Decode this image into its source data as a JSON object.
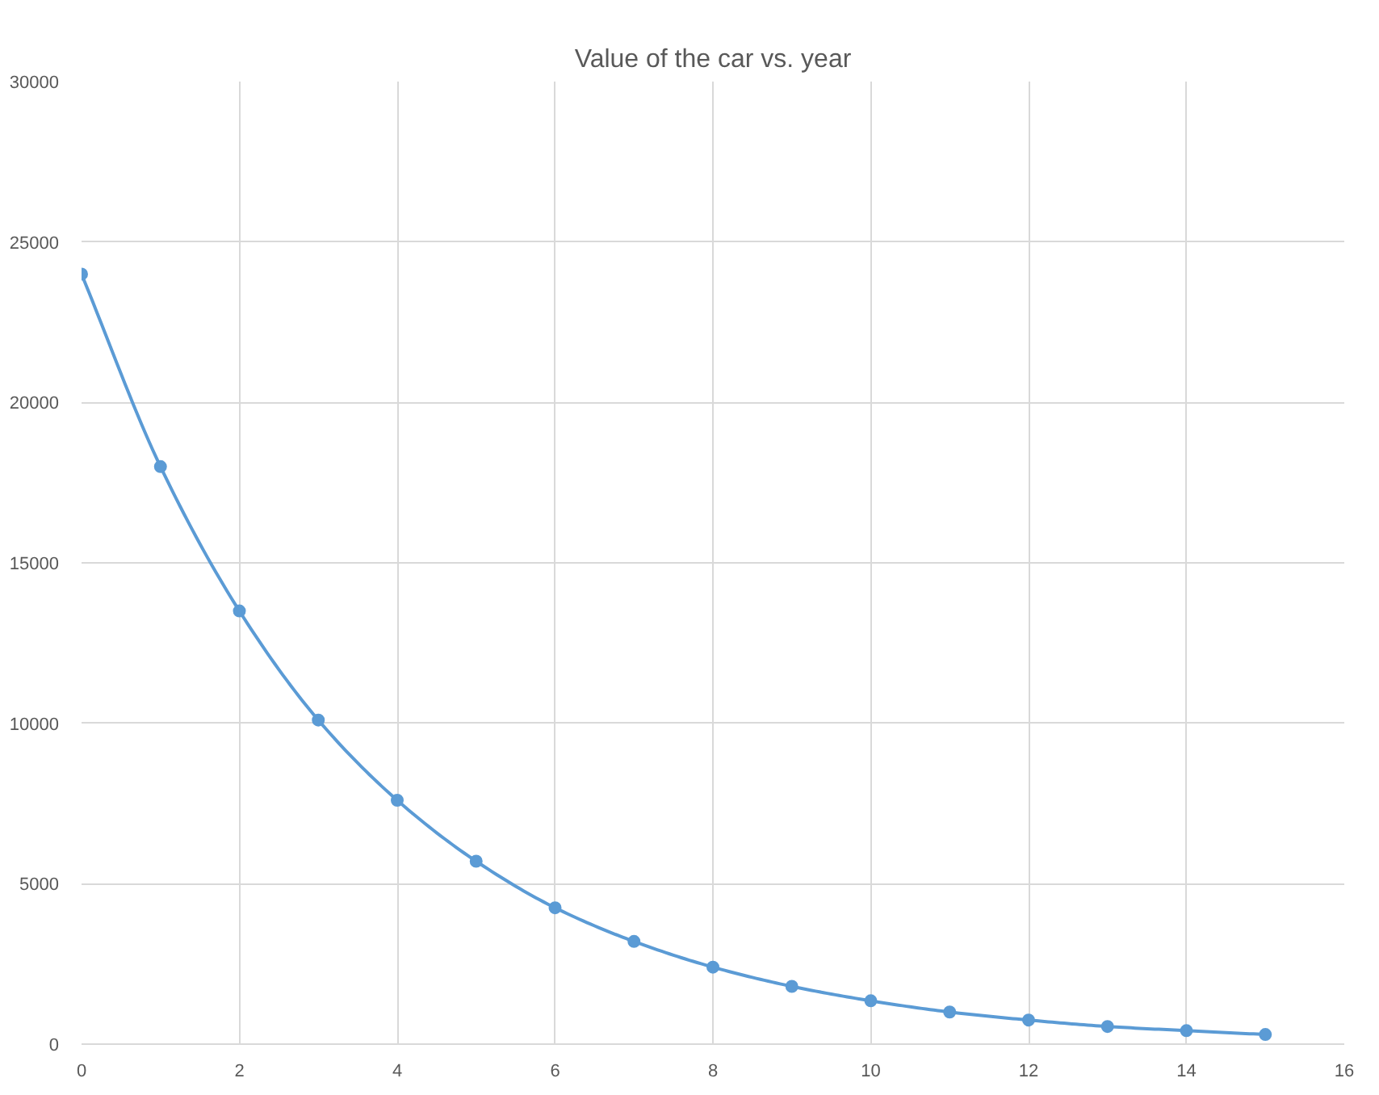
{
  "chart_data": {
    "type": "line",
    "title": "Value of the car vs. year",
    "x": [
      0,
      1,
      2,
      3,
      4,
      5,
      6,
      7,
      8,
      9,
      10,
      11,
      12,
      13,
      14,
      15
    ],
    "series": [
      {
        "color": "#5b9bd5",
        "values": [
          24000,
          18000,
          13500,
          10100,
          7600,
          5700,
          4250,
          3200,
          2400,
          1800,
          1350,
          1000,
          750,
          550,
          420,
          300
        ]
      }
    ],
    "xlim": [
      0,
      16
    ],
    "xticks": [
      0,
      2,
      4,
      6,
      8,
      10,
      12,
      14,
      16
    ],
    "ylim": [
      0,
      30000
    ],
    "yticks": [
      0,
      5000,
      10000,
      15000,
      20000,
      25000,
      30000
    ],
    "grid": true,
    "marker": "circle",
    "line_style": "solid"
  }
}
